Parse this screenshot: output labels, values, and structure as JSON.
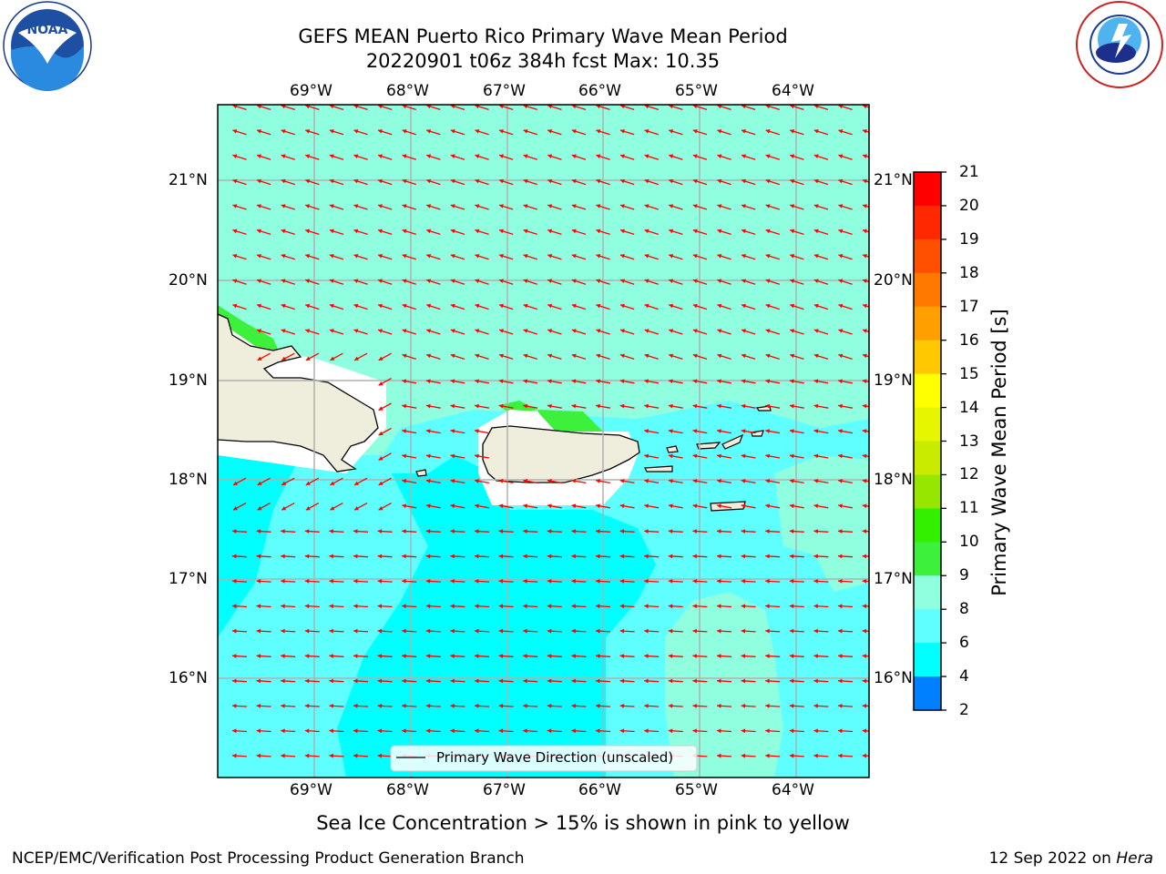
{
  "title": {
    "line1": "GEFS MEAN Puerto Rico Primary Wave Mean Period",
    "line2": "20220901 t06z 384h fcst   Max: 10.35"
  },
  "logos": {
    "left": "noaa-logo",
    "right": "nws-logo"
  },
  "map": {
    "lon_labels": [
      "69°W",
      "68°W",
      "67°W",
      "66°W",
      "65°W",
      "64°W"
    ],
    "lat_labels": [
      "21°N",
      "20°N",
      "19°N",
      "18°N",
      "17°N",
      "16°N"
    ],
    "legend_label": "Primary Wave Direction (unscaled)",
    "land_color": "#efeedd",
    "arrow_color": "#ff0000"
  },
  "colorbar": {
    "label": "Primary Wave Mean Period [s]",
    "ticks": [
      "21",
      "20",
      "19",
      "18",
      "17",
      "16",
      "15",
      "14",
      "13",
      "12",
      "11",
      "10",
      "9",
      "8",
      "6",
      "4",
      "2"
    ],
    "colors_top_to_bottom": [
      "#ff0000",
      "#ff2800",
      "#ff5000",
      "#ff7800",
      "#ffa000",
      "#ffc800",
      "#ffff00",
      "#e6f500",
      "#c8eb00",
      "#96e600",
      "#32f000",
      "#3cf03c",
      "#90ffe0",
      "#60ffff",
      "#00ffff",
      "#0080ff",
      "#0000ff"
    ]
  },
  "note": "Sea Ice Concentration > 15% is shown in pink to yellow",
  "footer": {
    "left": "NCEP/EMC/Verification Post Processing Product Generation Branch",
    "date": "12 Sep 2022 on ",
    "machine": "Hera"
  }
}
